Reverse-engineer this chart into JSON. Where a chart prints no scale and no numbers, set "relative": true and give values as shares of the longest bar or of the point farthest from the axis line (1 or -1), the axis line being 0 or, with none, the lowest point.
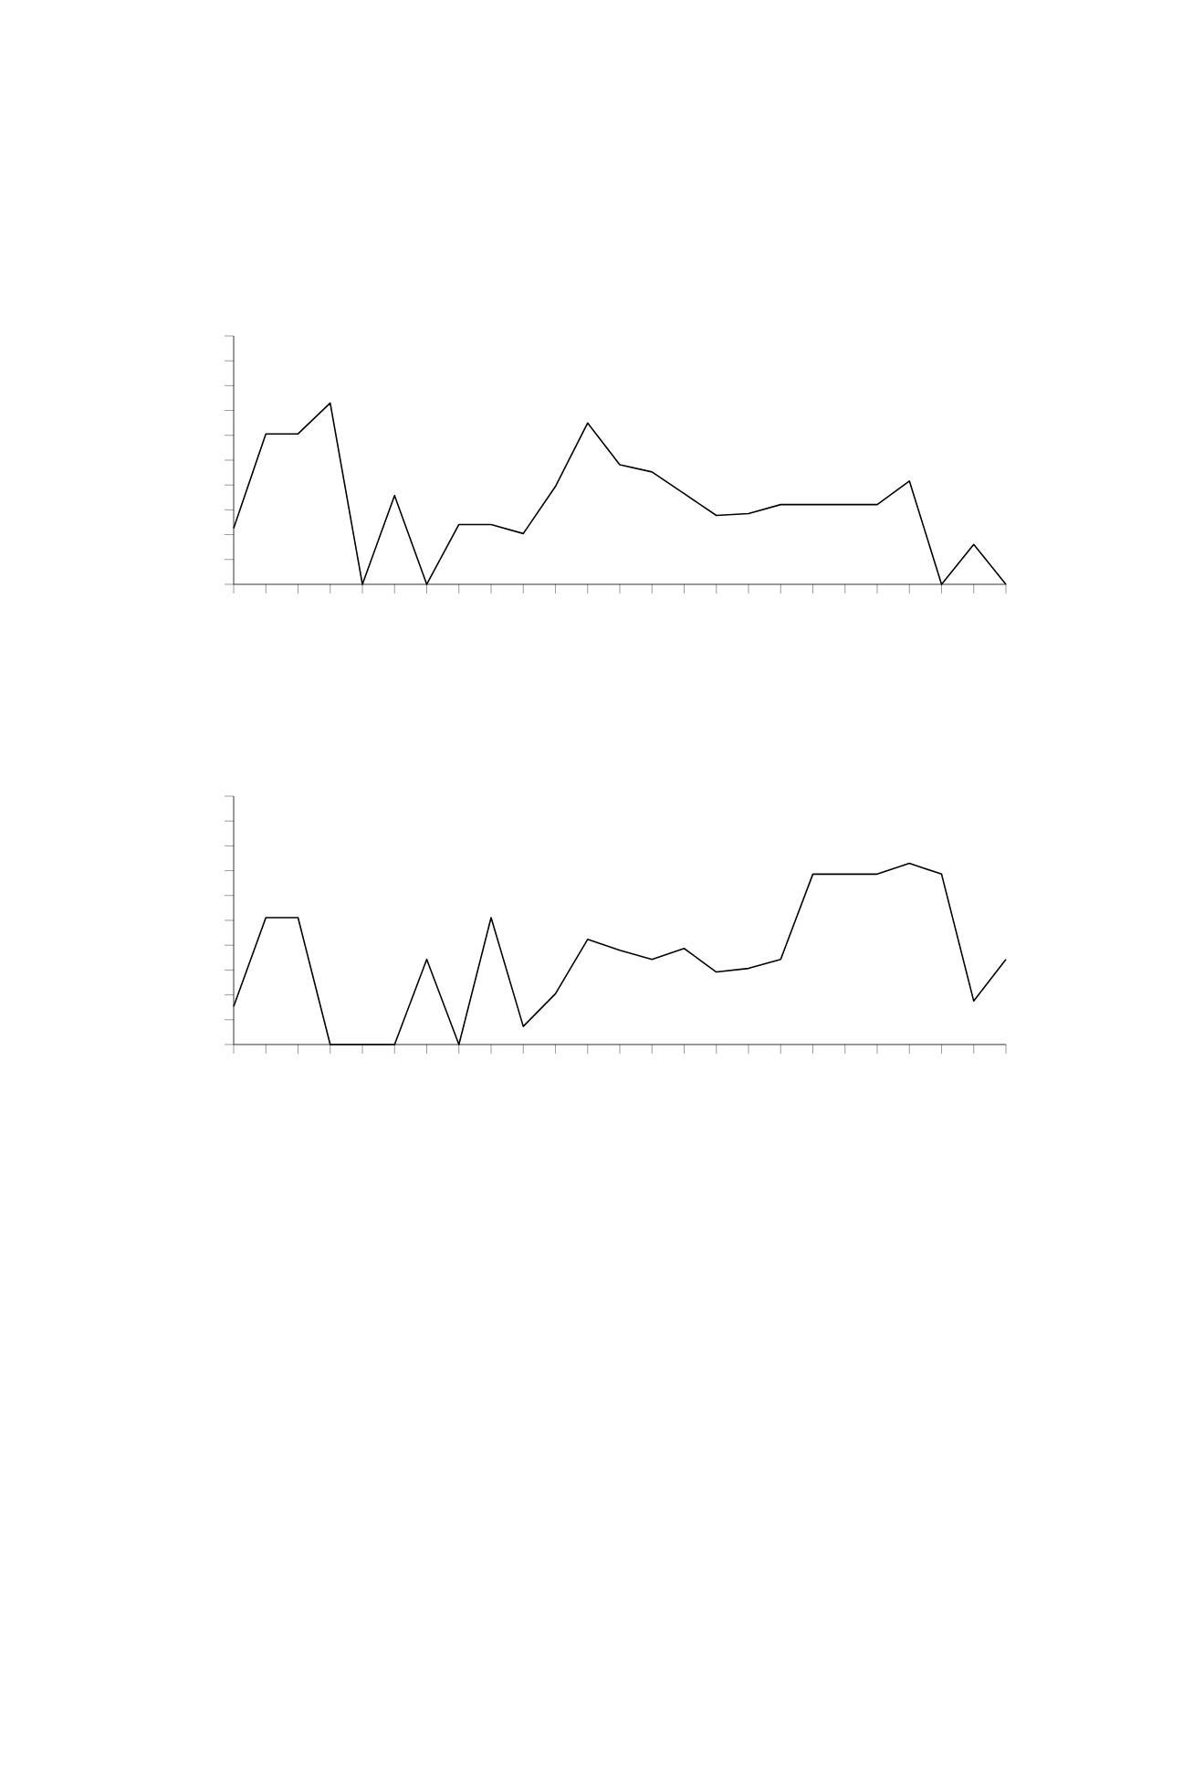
{
  "chart_data": [
    {
      "type": "line",
      "relative": true,
      "tick_labels": false,
      "color": "#000000",
      "categories": [
        null,
        null,
        null,
        null,
        null,
        null,
        null,
        null,
        null,
        null,
        null,
        null,
        null,
        null,
        null,
        null,
        null,
        null,
        null,
        null,
        null,
        null,
        null,
        null,
        null
      ],
      "values": [
        0.31,
        0.83,
        0.83,
        1,
        0,
        0.49,
        0,
        0.33,
        0.33,
        0.28,
        0.54,
        0.89,
        0.66,
        0.62,
        0.5,
        0.38,
        0.39,
        0.44,
        0.44,
        0.44,
        0.44,
        0.57,
        0,
        0.22,
        0
      ]
    },
    {
      "type": "line",
      "relative": true,
      "tick_labels": false,
      "color": "#000000",
      "categories": [
        null,
        null,
        null,
        null,
        null,
        null,
        null,
        null,
        null,
        null,
        null,
        null,
        null,
        null,
        null,
        null,
        null,
        null,
        null,
        null,
        null,
        null,
        null,
        null,
        null
      ],
      "values": [
        0.21,
        0.7,
        0.7,
        0,
        0,
        0,
        0.47,
        0,
        0.7,
        0.1,
        0.28,
        0.58,
        0.52,
        0.47,
        0.53,
        0.4,
        0.42,
        0.47,
        0.94,
        0.94,
        0.94,
        1,
        0.94,
        0.24,
        0.47
      ]
    }
  ]
}
